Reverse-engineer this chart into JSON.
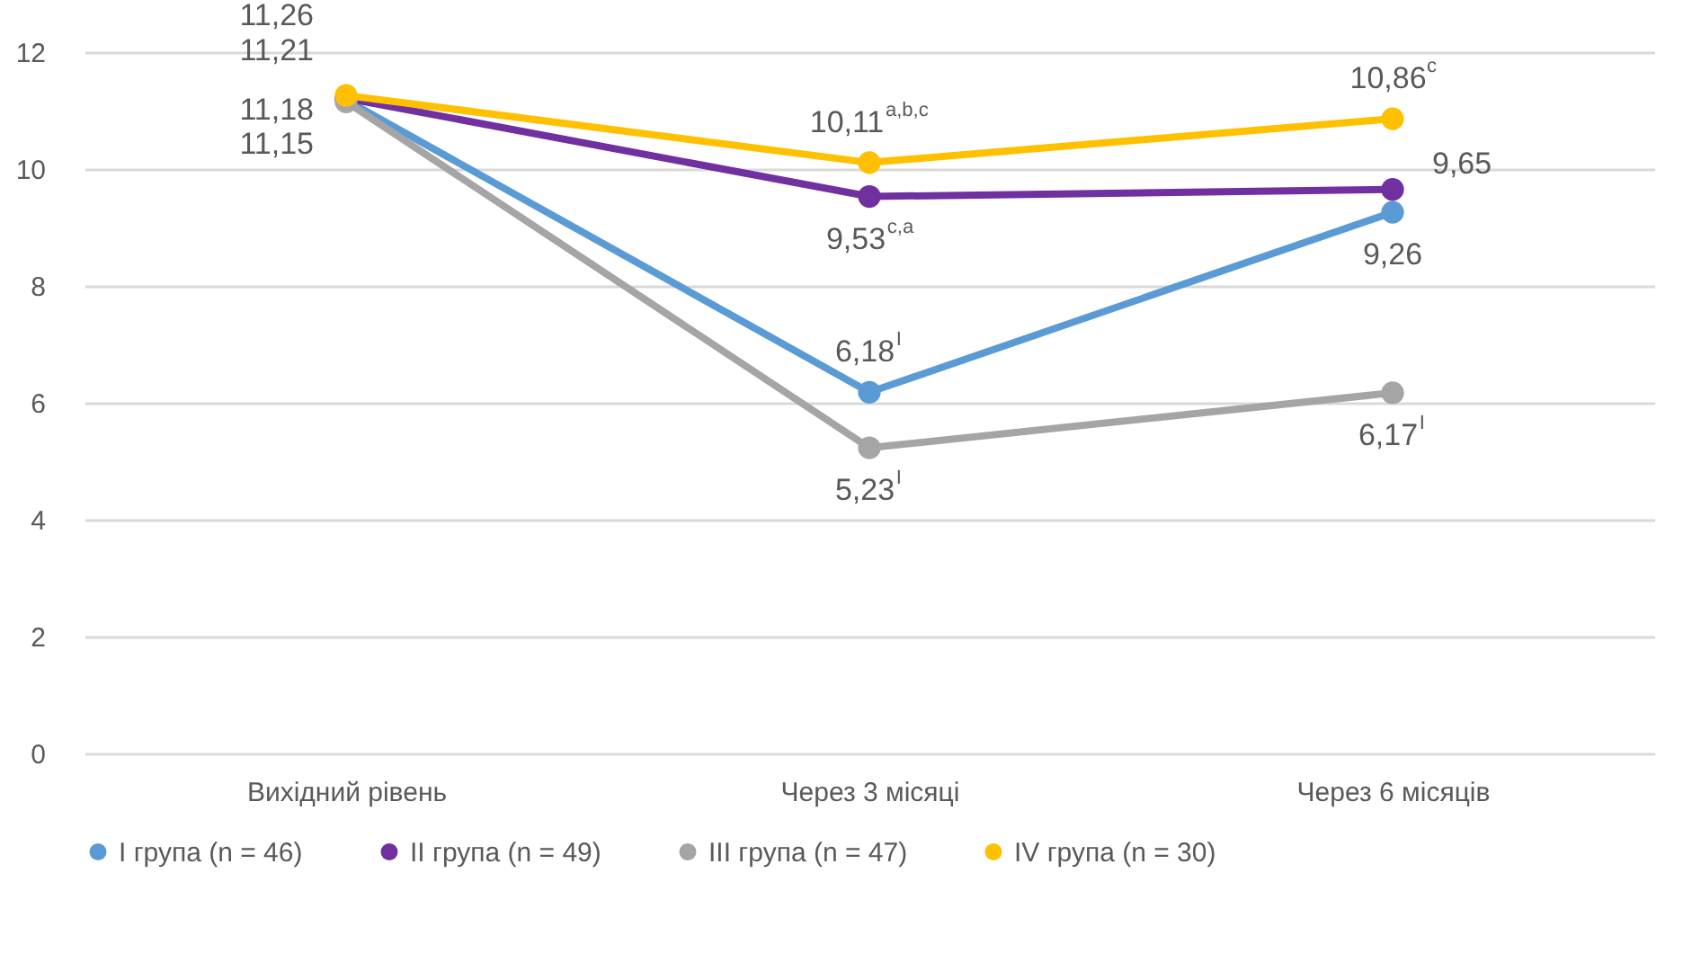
{
  "chart_data": {
    "type": "line",
    "categories": [
      "Вихідний рівень",
      "Через 3 місяці",
      "Через 6 місяців"
    ],
    "series": [
      {
        "name": "I група (n = 46)",
        "color": "#5b9bd5",
        "values": [
          11.18,
          6.18,
          9.26
        ],
        "value_labels": [
          "11,18",
          "6,18$^{I}$",
          "9,26"
        ]
      },
      {
        "name": "II група (n = 49)",
        "color": "#7030a0",
        "values": [
          11.21,
          9.53,
          9.65
        ],
        "value_labels": [
          "11,21",
          "9,53$^{c,a}$",
          "9,65"
        ]
      },
      {
        "name": "III група (n = 47)",
        "color": "#a5a5a5",
        "values": [
          11.15,
          5.23,
          6.17
        ],
        "value_labels": [
          "11,15",
          "5,23$^{I}$",
          "6,17$^{I}$"
        ]
      },
      {
        "name": "IV група (n = 30)",
        "color": "#ffc000",
        "values": [
          11.26,
          10.11,
          10.86
        ],
        "value_labels": [
          "11,26",
          "10,11$^{a,b,c}$",
          "10,86$^{c}$"
        ]
      }
    ],
    "ylim": [
      0,
      12
    ],
    "yticks": [
      0,
      2,
      4,
      6,
      8,
      10,
      12
    ],
    "grid": "y",
    "legend": "bottom",
    "marker": "circle",
    "line_style": "solid"
  }
}
